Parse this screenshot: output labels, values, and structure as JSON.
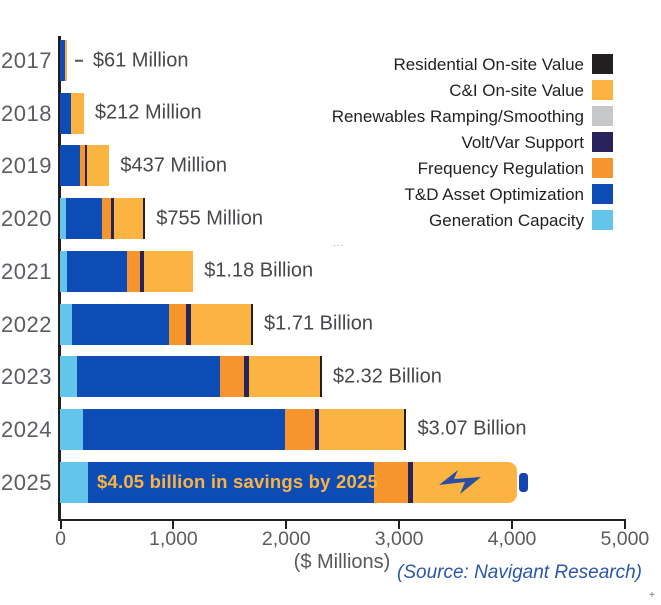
{
  "chart_data": {
    "type": "bar",
    "orientation": "horizontal-stacked",
    "xlabel": "($ Millions)",
    "xlim": [
      0,
      5000
    ],
    "x_ticks": [
      "0",
      "1,000",
      "2,000",
      "3,000",
      "4,000",
      "5,000"
    ],
    "x_tick_values": [
      0,
      1000,
      2000,
      3000,
      4000,
      5000
    ],
    "categories": [
      "2017",
      "2018",
      "2019",
      "2020",
      "2021",
      "2022",
      "2023",
      "2024",
      "2025"
    ],
    "series": [
      {
        "name": "Generation Capacity",
        "color": "#63c5e9",
        "values": [
          0,
          0,
          0,
          50,
          60,
          110,
          155,
          205,
          250
        ]
      },
      {
        "name": "T&D Asset Optimization",
        "color": "#0d4bb5",
        "values": [
          45,
          95,
          175,
          325,
          535,
          855,
          1265,
          1790,
          2535
        ]
      },
      {
        "name": "Frequency Regulation",
        "color": "#f6952d",
        "values": [
          0,
          0,
          50,
          75,
          115,
          155,
          210,
          265,
          300
        ]
      },
      {
        "name": "Volt/Var Support",
        "color": "#29235c",
        "values": [
          0,
          0,
          15,
          25,
          30,
          40,
          45,
          35,
          45
        ]
      },
      {
        "name": "Renewables Ramping/Smoothing",
        "color": "#c7c8ca",
        "values": [
          0,
          0,
          0,
          0,
          0,
          0,
          0,
          0,
          0
        ]
      },
      {
        "name": "C&I On-site Value",
        "color": "#fbb441",
        "values": [
          16,
          117,
          197,
          260,
          440,
          530,
          625,
          755,
          920
        ]
      },
      {
        "name": "Residential On-site Value",
        "color": "#231f20",
        "values": [
          0,
          0,
          0,
          20,
          0,
          20,
          20,
          20,
          0
        ]
      }
    ],
    "bar_totals_millions": [
      61,
      212,
      437,
      755,
      1180,
      1710,
      2320,
      3070,
      4050
    ],
    "bar_total_labels": [
      "$61 Million",
      "$212 Million",
      "$437 Million",
      "$755 Million",
      "$1.18 Billion",
      "$1.71 Billion",
      "$2.32 Billion",
      "$3.07 Billion",
      ""
    ],
    "in_bar_annotation": {
      "year": "2025",
      "text": "$4.05 billion in savings by 2025",
      "color": "#fbb441"
    },
    "battery": {
      "bolt_icon": "lightning-bolt",
      "bolt_color": "#2b4ea2",
      "tip_color": "#1545ae"
    },
    "legend": {
      "position": "top-right",
      "items": [
        {
          "label": "Residential On-site Value",
          "color": "#231f20"
        },
        {
          "label": "C&I On-site Value",
          "color": "#fbb441"
        },
        {
          "label": "Renewables Ramping/Smoothing",
          "color": "#c7c8ca"
        },
        {
          "label": "Volt/Var Support",
          "color": "#29235c"
        },
        {
          "label": "Frequency Regulation",
          "color": "#f6952d"
        },
        {
          "label": "T&D Asset Optimization",
          "color": "#0d4bb5"
        },
        {
          "label": "Generation Capacity",
          "color": "#63c5e9"
        }
      ]
    },
    "source_note": "(Source: Navigant Research)",
    "grid": false
  },
  "artifacts": {
    "ellipsis_mark": "...",
    "corner_mark": "+"
  }
}
